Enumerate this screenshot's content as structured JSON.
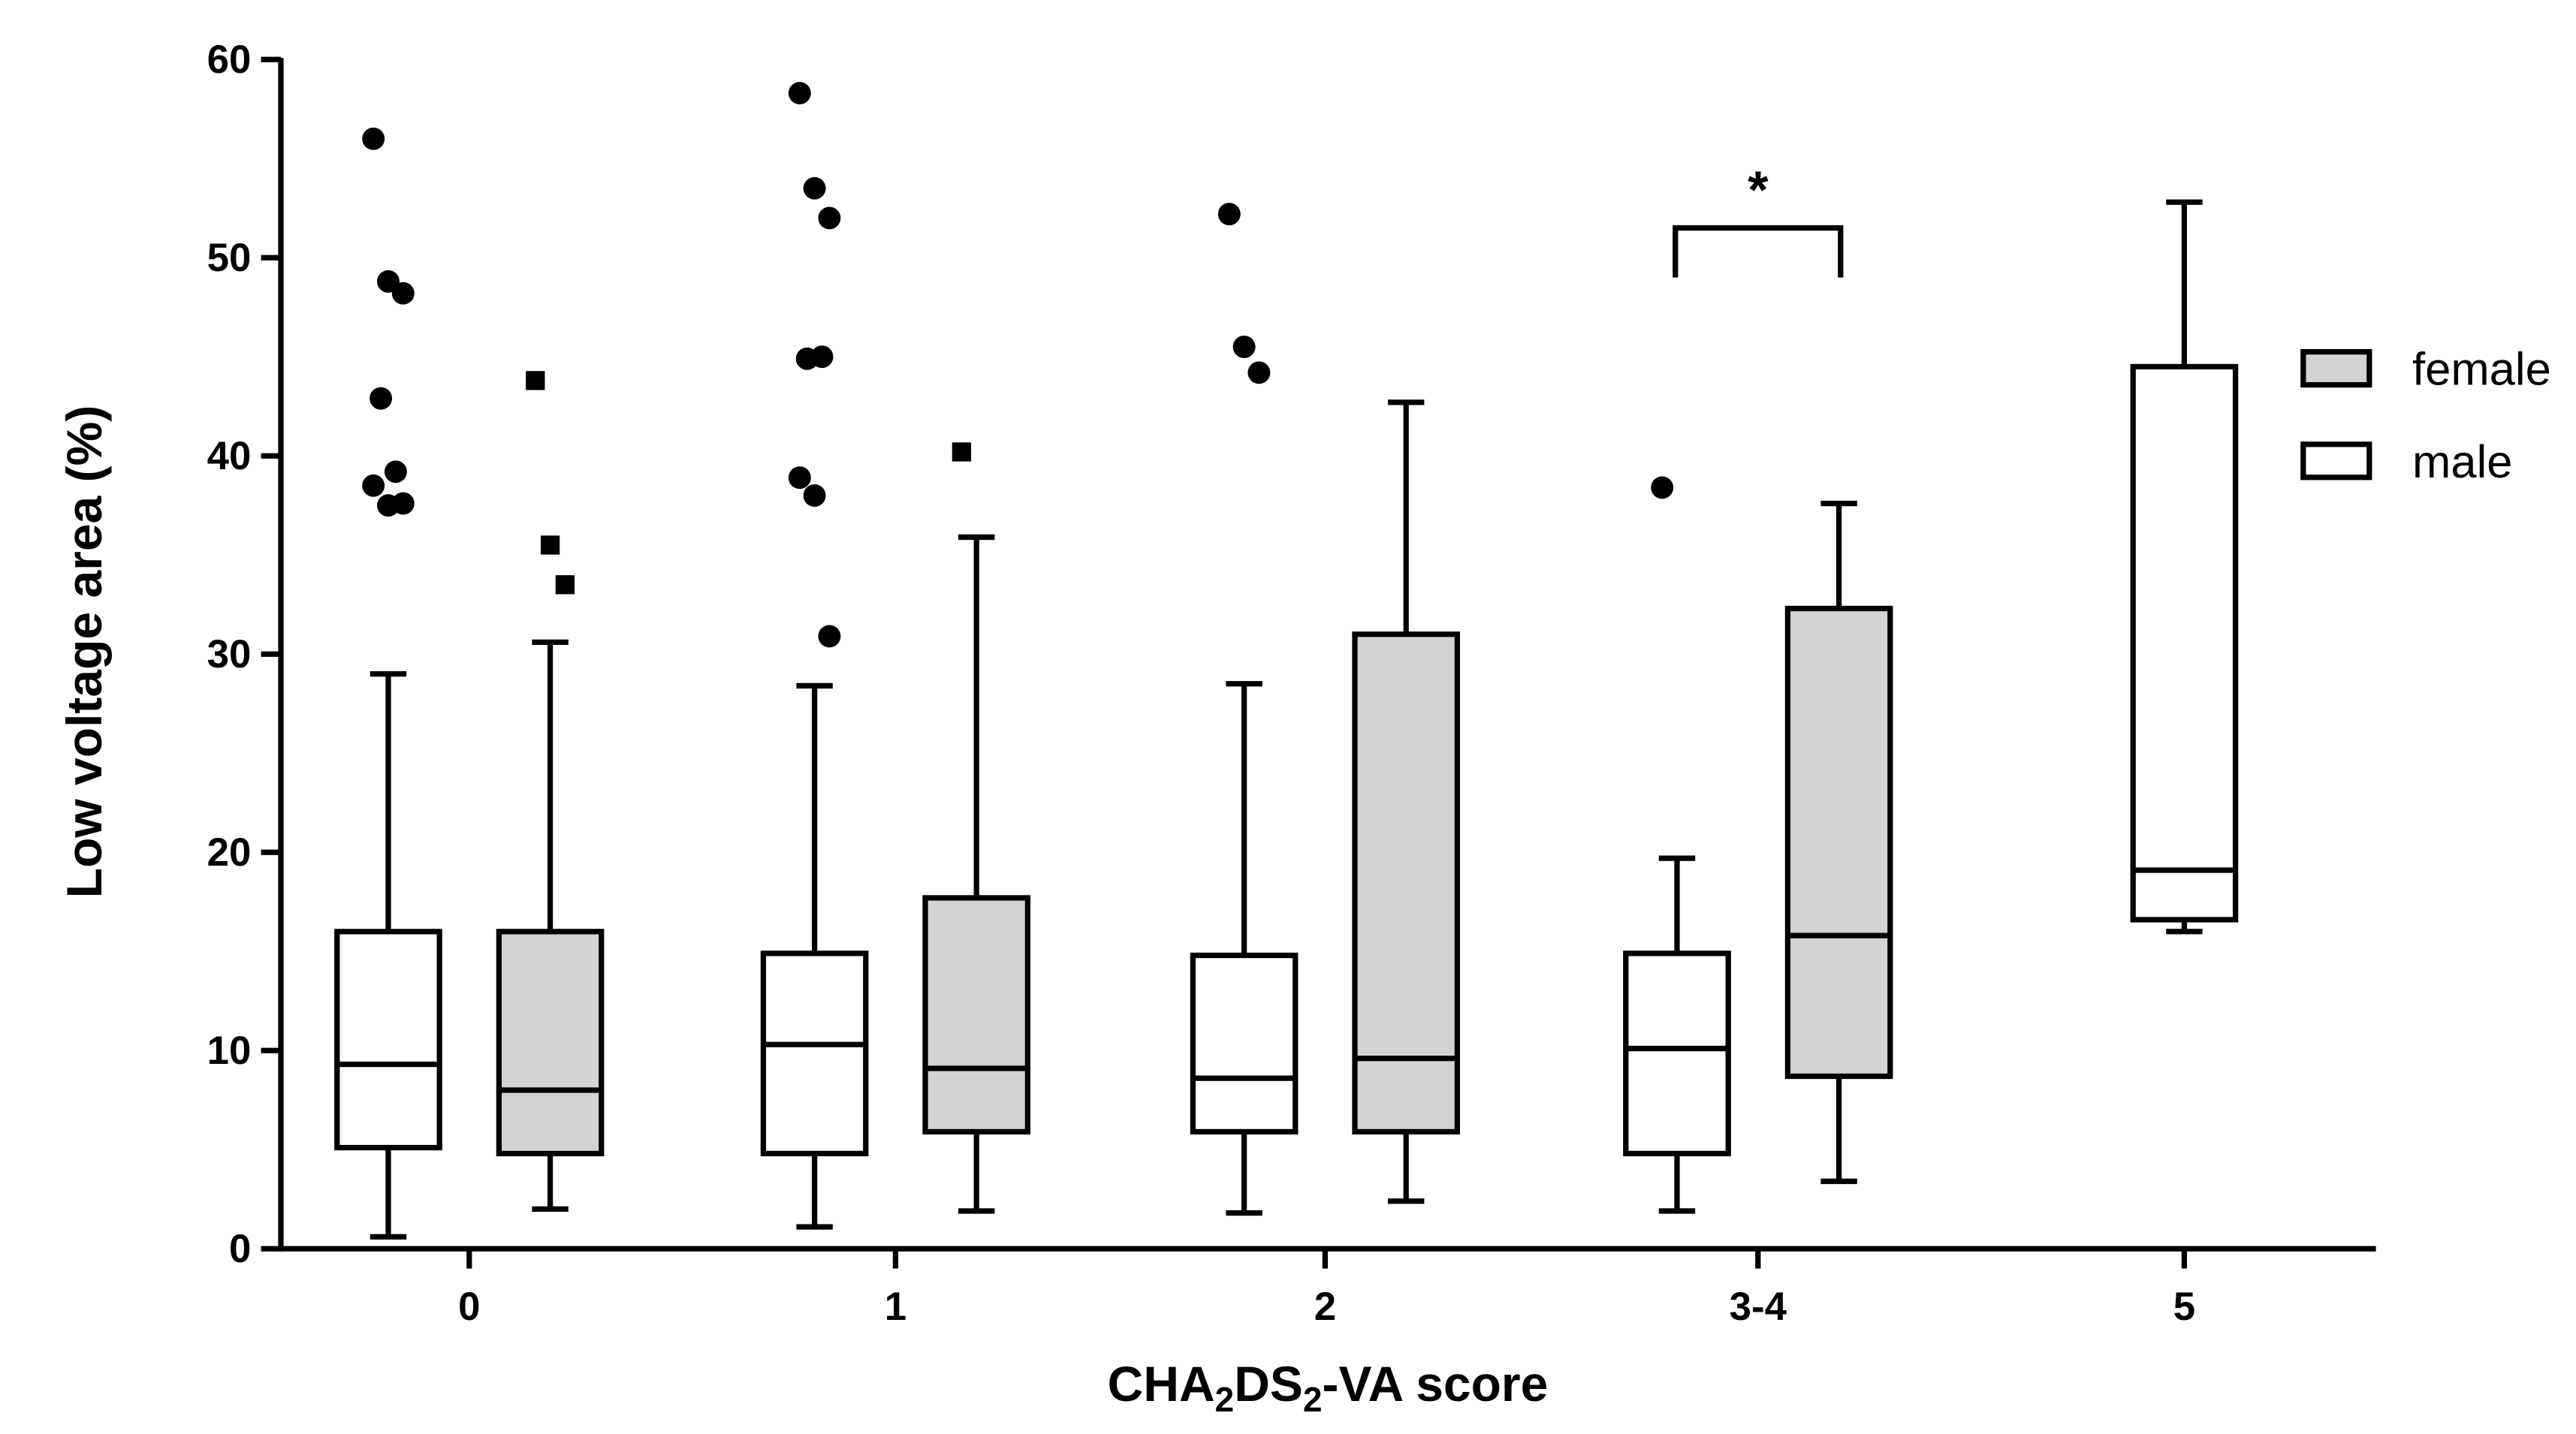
{
  "chart_data": {
    "type": "box",
    "title": "",
    "xlabel": {
      "prefix": "CHA",
      "sub1": "2",
      "mid": "DS",
      "sub2": "2",
      "suffix": "-VA score"
    },
    "ylabel": "Low voltage area (%)",
    "ylim": [
      0,
      60
    ],
    "yticks": [
      "0",
      "10",
      "20",
      "30",
      "40",
      "50",
      "60"
    ],
    "categories": [
      "0",
      "1",
      "2",
      "3-4",
      "5"
    ],
    "legend": [
      {
        "name": "female",
        "fill": "#d3d3d3"
      },
      {
        "name": "male",
        "fill": "#ffffff"
      }
    ],
    "boxes": [
      {
        "group": "0",
        "sex": "male",
        "whisker_low": 0.6,
        "q1": 5.1,
        "median": 9.3,
        "q3": 16.0,
        "whisker_high": 29.0,
        "outliers": [
          56.0,
          48.8,
          48.2,
          42.9,
          39.2,
          38.5,
          37.5,
          37.6
        ]
      },
      {
        "group": "0",
        "sex": "female",
        "whisker_low": 2.0,
        "q1": 4.8,
        "median": 8.0,
        "q3": 16.0,
        "whisker_high": 30.6,
        "outliers": [
          43.8,
          35.5,
          33.5
        ]
      },
      {
        "group": "1",
        "sex": "male",
        "whisker_low": 1.1,
        "q1": 4.8,
        "median": 10.3,
        "q3": 14.9,
        "whisker_high": 28.4,
        "outliers": [
          58.3,
          53.5,
          52.0,
          44.9,
          45.0,
          38.9,
          38.0,
          30.9
        ]
      },
      {
        "group": "1",
        "sex": "female",
        "whisker_low": 1.9,
        "q1": 5.9,
        "median": 9.1,
        "q3": 17.7,
        "whisker_high": 35.9,
        "outliers": [
          40.2
        ]
      },
      {
        "group": "2",
        "sex": "male",
        "whisker_low": 1.8,
        "q1": 5.9,
        "median": 8.6,
        "q3": 14.8,
        "whisker_high": 28.5,
        "outliers": [
          52.2,
          45.5,
          44.2
        ]
      },
      {
        "group": "2",
        "sex": "female",
        "whisker_low": 2.4,
        "q1": 5.9,
        "median": 9.6,
        "q3": 31.0,
        "whisker_high": 42.7,
        "outliers": []
      },
      {
        "group": "3-4",
        "sex": "male",
        "whisker_low": 1.9,
        "q1": 4.8,
        "median": 10.1,
        "q3": 14.9,
        "whisker_high": 19.7,
        "outliers": [
          38.4
        ]
      },
      {
        "group": "3-4",
        "sex": "female",
        "whisker_low": 3.4,
        "q1": 8.7,
        "median": 15.8,
        "q3": 32.3,
        "whisker_high": 37.6,
        "outliers": []
      },
      {
        "group": "5",
        "sex": "male",
        "whisker_low": 16.0,
        "q1": 16.6,
        "median": 19.1,
        "q3": 44.5,
        "whisker_high": 52.8,
        "outliers": []
      }
    ],
    "annotations": [
      {
        "text": "*",
        "group": "3-4",
        "y": 51.5
      }
    ]
  }
}
